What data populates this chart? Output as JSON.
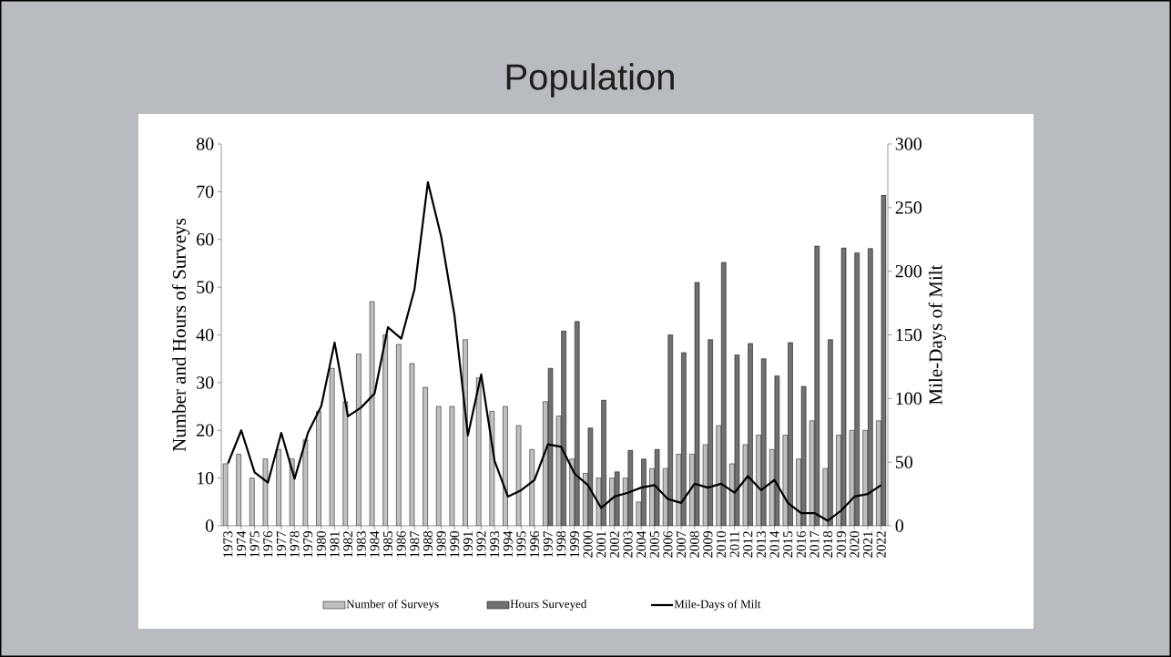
{
  "chart_data": {
    "type": "bar",
    "title": "Population",
    "ylabel": "Number and Hours of Surveys",
    "y2label": "Mile-Days of Milt",
    "categories": [
      "1973",
      "1974",
      "1975",
      "1976",
      "1977",
      "1978",
      "1979",
      "1980",
      "1981",
      "1982",
      "1983",
      "1984",
      "1985",
      "1986",
      "1987",
      "1988",
      "1989",
      "1990",
      "1991",
      "1992",
      "1993",
      "1994",
      "1995",
      "1996",
      "1997",
      "1998",
      "1999",
      "2000",
      "2001",
      "2002",
      "2003",
      "2004",
      "2005",
      "2006",
      "2007",
      "2008",
      "2009",
      "2010",
      "2011",
      "2012",
      "2013",
      "2014",
      "2015",
      "2016",
      "2017",
      "2018",
      "2019",
      "2020",
      "2021",
      "2022"
    ],
    "series": [
      {
        "name": "Number of Surveys",
        "color": "#c0c0c0",
        "values": [
          13,
          15,
          10,
          14,
          16,
          14,
          18,
          24,
          33,
          26,
          36,
          47,
          40,
          38,
          34,
          29,
          25,
          25,
          39,
          31,
          24,
          25,
          21,
          16,
          26,
          23,
          14,
          11,
          10,
          10,
          10,
          5,
          12,
          12,
          15,
          15,
          17,
          21,
          13,
          17,
          19,
          16,
          19,
          14,
          22,
          12,
          19,
          20,
          20,
          22
        ]
      },
      {
        "name": "Hours Surveyed",
        "color": "#707070",
        "values": [
          null,
          null,
          null,
          null,
          null,
          null,
          null,
          null,
          null,
          null,
          null,
          null,
          null,
          null,
          null,
          null,
          null,
          null,
          null,
          null,
          null,
          null,
          null,
          null,
          33,
          40.8,
          42.8,
          20.5,
          26.3,
          11.3,
          15.8,
          14,
          16,
          40,
          36.3,
          51,
          39,
          55.2,
          35.8,
          38.2,
          35,
          31.4,
          38.4,
          29.2,
          58.6,
          39,
          58.2,
          57.2,
          58.1,
          69.3
        ]
      },
      {
        "name": "Mile-Days of Milt",
        "type": "line",
        "axis": "y2",
        "color": "#000000",
        "values": [
          49,
          75,
          42,
          34,
          73,
          37,
          73,
          94,
          144,
          86,
          93,
          104,
          156,
          147,
          186,
          270,
          227,
          165,
          71,
          119,
          51,
          23,
          28,
          36,
          64,
          62,
          41,
          32,
          14,
          23,
          26,
          30,
          32,
          21,
          18,
          33,
          30,
          33,
          26,
          39,
          28,
          36,
          18,
          10,
          10,
          4,
          12,
          23,
          25,
          32
        ]
      }
    ],
    "ylim": [
      0,
      80
    ],
    "yticks": [
      0,
      10,
      20,
      30,
      40,
      50,
      60,
      70,
      80
    ],
    "y2lim": [
      0,
      300
    ],
    "y2ticks": [
      0,
      50,
      100,
      150,
      200,
      250,
      300
    ],
    "legend": "bottom",
    "marker": "none",
    "line_style": "solid",
    "grid": false
  }
}
